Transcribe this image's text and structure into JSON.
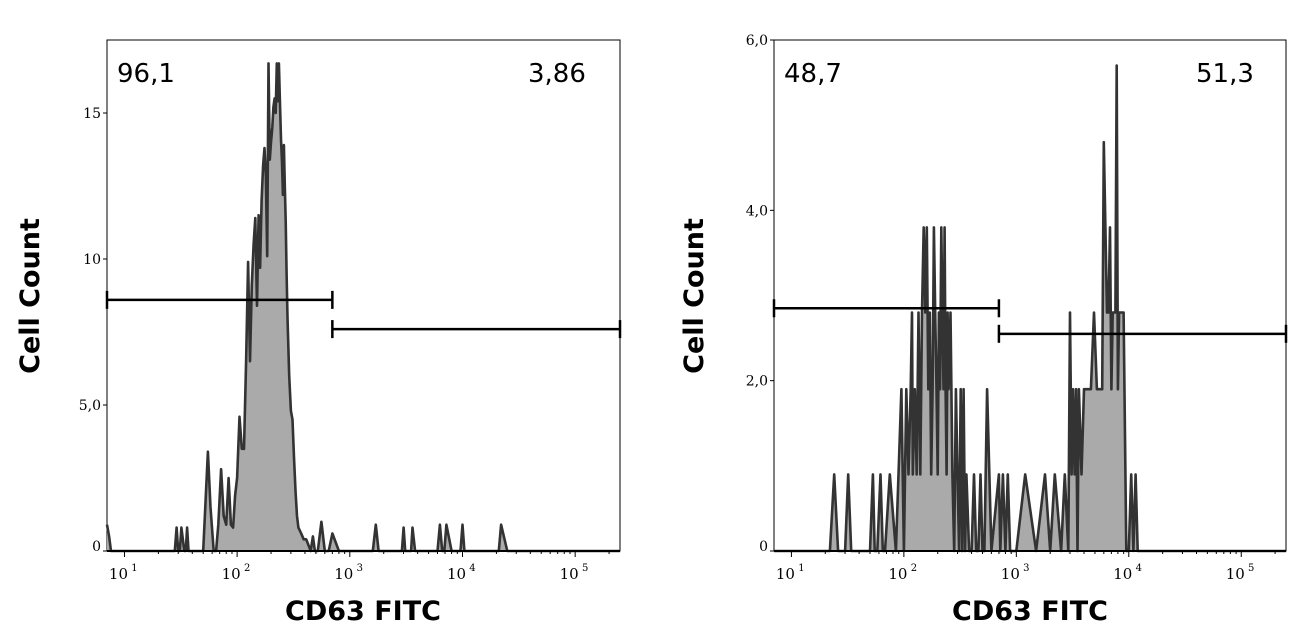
{
  "chart_data": [
    {
      "type": "histogram",
      "xlabel": "CD63 FITC",
      "ylabel": "Cell Count",
      "xscale": "log",
      "xlim": [
        7,
        250000
      ],
      "ylim": [
        0,
        17.5
      ],
      "yticks": [
        0,
        5,
        10,
        15
      ],
      "ytick_labels": [
        "0",
        "5,0",
        "10",
        "15"
      ],
      "xticks": [
        10,
        100,
        1000,
        10000,
        100000
      ],
      "xtick_labels": [
        {
          "base": "10",
          "exp": "1"
        },
        {
          "base": "10",
          "exp": "2"
        },
        {
          "base": "10",
          "exp": "3"
        },
        {
          "base": "10",
          "exp": "4"
        },
        {
          "base": "10",
          "exp": "5"
        }
      ],
      "fill_color": "#aaaaaa",
      "line_color": "#333333",
      "gates": [
        {
          "label": "96,1",
          "x_start": 7,
          "x_end": 700,
          "y": 8.6
        },
        {
          "label": "3,86",
          "x_start": 700,
          "x_end": 250000,
          "y": 7.6
        }
      ],
      "x": [
        7,
        7.3,
        7.6,
        28,
        29,
        30,
        31,
        32,
        34,
        35,
        36,
        37,
        40,
        42,
        45,
        50,
        55,
        58,
        62,
        65,
        68,
        72,
        76,
        80,
        84,
        88,
        92,
        96,
        100,
        105,
        110,
        115,
        120,
        125,
        130,
        135,
        140,
        145,
        150,
        155,
        160,
        165,
        170,
        175,
        180,
        185,
        190,
        195,
        200,
        205,
        210,
        215,
        220,
        225,
        230,
        235,
        240,
        245,
        250,
        255,
        260,
        265,
        270,
        275,
        280,
        290,
        300,
        310,
        320,
        330,
        340,
        350,
        370,
        390,
        410,
        430,
        450,
        470,
        490,
        520,
        560,
        600,
        650,
        700,
        800,
        900,
        1000,
        1200,
        1400,
        1500,
        1600,
        1700,
        1800,
        2000,
        2500,
        2900,
        3000,
        3100,
        3300,
        3500,
        3600,
        3800,
        4000,
        5000,
        6000,
        6300,
        6600,
        6900,
        7200,
        8000,
        9000,
        9600,
        10000,
        10400,
        11000,
        15000,
        20000,
        21000,
        22000,
        25000,
        250000
      ],
      "values": [
        0.9,
        0.5,
        0,
        0,
        0.8,
        0,
        0,
        0.8,
        0,
        0,
        0.8,
        0,
        0,
        0,
        0,
        0,
        3.4,
        1.5,
        0,
        0,
        0.9,
        2.8,
        1.2,
        0.9,
        2.5,
        0.9,
        0.8,
        1.9,
        2.5,
        4.6,
        3.5,
        3.5,
        6.5,
        9.9,
        6.5,
        9.1,
        10.5,
        11.4,
        8.4,
        11.5,
        9.7,
        12,
        13.2,
        13.8,
        12.8,
        10.1,
        16.7,
        13.4,
        14,
        14.5,
        15.2,
        15.5,
        15,
        16.7,
        15.4,
        16.7,
        15.3,
        14.1,
        13.3,
        12.2,
        13.9,
        12.5,
        11.3,
        9.5,
        8,
        6,
        4.8,
        4.5,
        3.2,
        2,
        1.2,
        0.8,
        0.6,
        0.4,
        0.4,
        0.2,
        0,
        0.5,
        0,
        0,
        1,
        0,
        0,
        0.6,
        0,
        0,
        0,
        0,
        0,
        0,
        0,
        0.9,
        0,
        0,
        0,
        0,
        0.8,
        0,
        0,
        0,
        0.8,
        0,
        0,
        0,
        0,
        0.9,
        0,
        0,
        0.9,
        0,
        0,
        0,
        0.9,
        0,
        0,
        0,
        0,
        0,
        0.9,
        0,
        0
      ]
    },
    {
      "type": "histogram",
      "xlabel": "CD63 FITC",
      "ylabel": "Cell Count",
      "xscale": "log",
      "xlim": [
        7,
        250000
      ],
      "ylim": [
        0,
        6
      ],
      "yticks": [
        0,
        2,
        4,
        6
      ],
      "ytick_labels": [
        "0",
        "2,0",
        "4,0",
        "6,0"
      ],
      "xticks": [
        10,
        100,
        1000,
        10000,
        100000
      ],
      "xtick_labels": [
        {
          "base": "10",
          "exp": "1"
        },
        {
          "base": "10",
          "exp": "2"
        },
        {
          "base": "10",
          "exp": "3"
        },
        {
          "base": "10",
          "exp": "4"
        },
        {
          "base": "10",
          "exp": "5"
        }
      ],
      "fill_color": "#aaaaaa",
      "line_color": "#333333",
      "gates": [
        {
          "label": "48,7",
          "x_start": 7,
          "x_end": 700,
          "y": 2.85
        },
        {
          "label": "51,3",
          "x_start": 700,
          "x_end": 250000,
          "y": 2.55
        }
      ],
      "x": [
        7,
        22,
        24,
        26,
        30,
        32,
        34,
        50,
        53,
        55,
        58,
        62,
        65,
        68,
        75,
        85,
        95,
        100,
        105,
        110,
        115,
        118,
        120,
        125,
        130,
        135,
        140,
        145,
        150,
        155,
        160,
        165,
        170,
        175,
        180,
        185,
        190,
        195,
        200,
        205,
        210,
        215,
        220,
        225,
        230,
        235,
        240,
        245,
        250,
        260,
        270,
        280,
        290,
        300,
        310,
        320,
        330,
        340,
        350,
        360,
        380,
        400,
        420,
        440,
        460,
        480,
        500,
        520,
        550,
        600,
        700,
        720,
        760,
        800,
        840,
        880,
        1000,
        1200,
        1500,
        1800,
        2000,
        2200,
        2500,
        2700,
        2900,
        3000,
        3100,
        3200,
        3300,
        3400,
        3500,
        3600,
        3800,
        4000,
        4300,
        4600,
        4900,
        5200,
        5500,
        5800,
        6000,
        6200,
        6400,
        6600,
        6800,
        7000,
        7200,
        7400,
        7600,
        7800,
        8000,
        8200,
        8400,
        8600,
        8800,
        9000,
        9500,
        10000,
        10500,
        11000,
        11500,
        12000,
        12500,
        13000,
        14000,
        250000
      ],
      "values": [
        0,
        0,
        0.9,
        0,
        0,
        0.9,
        0,
        0,
        0.9,
        0,
        0,
        0.9,
        0,
        0,
        0.9,
        0,
        1.9,
        0,
        1.9,
        0.9,
        1.9,
        2.8,
        0.9,
        1.9,
        0.9,
        2.8,
        0.9,
        2.8,
        3.8,
        2.8,
        3.8,
        1.9,
        2.8,
        0.9,
        1.9,
        3.8,
        2.8,
        1.9,
        0.9,
        2.8,
        1.9,
        3.8,
        2.8,
        1.9,
        3.8,
        1.9,
        0.9,
        2.8,
        1.9,
        2.8,
        0.9,
        0,
        1.9,
        0.9,
        0,
        1.9,
        0,
        1.9,
        0,
        0.9,
        0,
        0,
        0.9,
        0,
        0,
        0.9,
        0,
        0,
        1.9,
        0,
        0.9,
        0,
        0.9,
        0,
        0.9,
        0,
        0,
        0.9,
        0,
        0.9,
        0,
        0.9,
        0,
        0.9,
        0,
        2.8,
        0.9,
        1.9,
        0.9,
        1.9,
        0,
        1.9,
        0.9,
        1.9,
        1.9,
        1.9,
        2.8,
        1.9,
        1.9,
        1.9,
        4.8,
        3.8,
        2.8,
        2.8,
        3.8,
        1.9,
        2.8,
        2.8,
        2.8,
        5.7,
        1.9,
        2.8,
        2.8,
        2.8,
        2.8,
        2.8,
        0,
        0,
        0.9,
        0,
        0.9,
        0,
        0,
        0,
        0,
        0
      ]
    }
  ]
}
